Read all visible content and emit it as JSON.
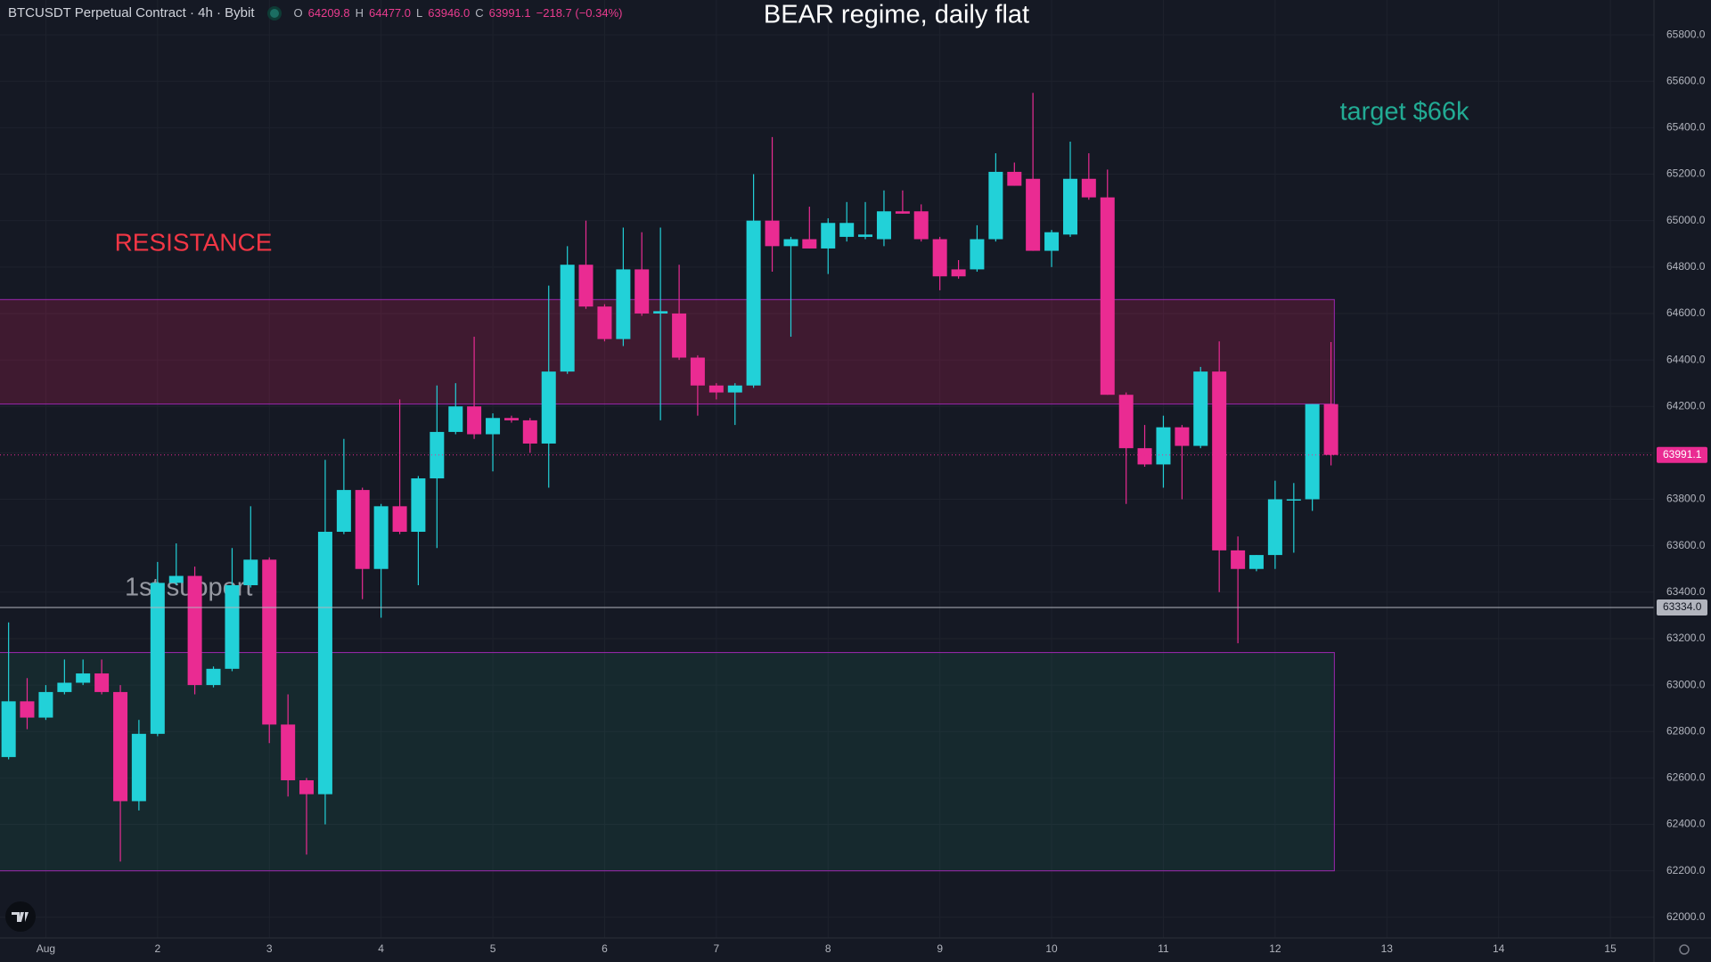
{
  "header": {
    "symbol": "BTCUSDT Perpetual Contract · 4h · Bybit",
    "ohlc": [
      {
        "key": "O",
        "value": "64209.8"
      },
      {
        "key": "H",
        "value": "64477.0"
      },
      {
        "key": "L",
        "value": "63946.0"
      },
      {
        "key": "C",
        "value": "63991.1"
      }
    ],
    "change": "−218.7 (−0.34%)"
  },
  "chart_data": {
    "type": "candlestick",
    "title": "BEAR regime, daily flat",
    "annotations": [
      "RESISTANCE",
      "target $66k",
      "1st support"
    ],
    "up_color": "#22d1d8",
    "down_color": "#ea2b92",
    "grid": true,
    "xlim": [
      0.59,
      15.39
    ],
    "ylim": [
      61911,
      65950
    ],
    "xticks": [
      {
        "value": 1,
        "label": "Aug"
      },
      2,
      3,
      4,
      5,
      6,
      7,
      8,
      9,
      10,
      11,
      12,
      13,
      14,
      15
    ],
    "yticks": [
      {
        "value": 62000,
        "label": "62000.0"
      },
      {
        "value": 62200,
        "label": "62200.0"
      },
      {
        "value": 62400,
        "label": "62400.0"
      },
      {
        "value": 62600,
        "label": "62600.0"
      },
      {
        "value": 62800,
        "label": "62800.0"
      },
      {
        "value": 63000,
        "label": "63000.0"
      },
      {
        "value": 63200,
        "label": "63200.0"
      },
      {
        "value": 63400,
        "label": "63400.0"
      },
      {
        "value": 63600,
        "label": "63600.0"
      },
      {
        "value": 63800,
        "label": "63800.0"
      },
      {
        "value": 64000,
        "label": "64000.0"
      },
      {
        "value": 64200,
        "label": "64200.0"
      },
      {
        "value": 64400,
        "label": "64400.0"
      },
      {
        "value": 64600,
        "label": "64600.0"
      },
      {
        "value": 64800,
        "label": "64800.0"
      },
      {
        "value": 65000,
        "label": "65000.0"
      },
      {
        "value": 65200,
        "label": "65200.0"
      },
      {
        "value": 65400,
        "label": "65400.0"
      },
      {
        "value": 65600,
        "label": "65600.0"
      },
      {
        "value": 65800,
        "label": "65800.0"
      }
    ],
    "zones": [
      {
        "top": 64660,
        "bottom": 64210,
        "x_end": 12.53,
        "color": "#e91e63"
      },
      {
        "top": 63140,
        "bottom": 62200,
        "x_end": 12.53,
        "color": "#1e6b58"
      }
    ],
    "hlines": [
      {
        "value": 63334,
        "value_label": "63334.0",
        "color": "#b2b5be",
        "style": "solid"
      },
      {
        "value": 63991.1,
        "value_label": "63991.1",
        "color": "#ea2b92",
        "style": "dotted"
      }
    ],
    "x": [
      0.667,
      0.833,
      1,
      1.167,
      1.333,
      1.5,
      1.667,
      1.833,
      2,
      2.167,
      2.333,
      2.5,
      2.667,
      2.833,
      3,
      3.167,
      3.333,
      3.5,
      3.667,
      3.833,
      4,
      4.167,
      4.333,
      4.5,
      4.667,
      4.833,
      5,
      5.167,
      5.333,
      5.5,
      5.667,
      5.833,
      6,
      6.167,
      6.333,
      6.5,
      6.667,
      6.833,
      7,
      7.167,
      7.333,
      7.5,
      7.667,
      7.833,
      8,
      8.167,
      8.333,
      8.5,
      8.667,
      8.833,
      9,
      9.167,
      9.333,
      9.5,
      9.667,
      9.833,
      10,
      10.167,
      10.333,
      10.5,
      10.667,
      10.833,
      11,
      11.167,
      11.333,
      11.5,
      11.667,
      11.833,
      12,
      12.167,
      12.333,
      12.5
    ],
    "open": [
      62690,
      62930,
      62860,
      62970,
      63010,
      63050,
      62970,
      62500,
      62790,
      63440,
      63470,
      63000,
      63070,
      63430,
      63540,
      62830,
      62590,
      62530,
      63660,
      63840,
      63500,
      63770,
      63660,
      63890,
      64090,
      64200,
      64080,
      64150,
      64140,
      64040,
      64350,
      64810,
      64630,
      64490,
      64790,
      64600,
      64600,
      64410,
      64290,
      64260,
      64290,
      65000,
      64890,
      64920,
      64880,
      64930,
      64930,
      64920,
      65040,
      65040,
      64920,
      64790,
      64790,
      64920,
      65210,
      65180,
      64870,
      64940,
      65180,
      65100,
      64250,
      64020,
      63950,
      64110,
      64030,
      64350,
      63580,
      63500,
      63560,
      63800,
      63800,
      64209.8
    ],
    "high": [
      63270,
      63030,
      63000,
      63110,
      63110,
      63110,
      63000,
      62850,
      63530,
      63610,
      63510,
      63080,
      63590,
      63770,
      63550,
      62960,
      62600,
      63970,
      64060,
      63850,
      63780,
      64230,
      63900,
      64290,
      64300,
      64500,
      64170,
      64160,
      64150,
      64720,
      64890,
      65000,
      64640,
      64970,
      64950,
      64970,
      64810,
      64420,
      64300,
      64300,
      65200,
      65360,
      64930,
      65060,
      65010,
      65080,
      65080,
      65130,
      65130,
      65070,
      64930,
      64830,
      64980,
      65290,
      65250,
      65550,
      64960,
      65340,
      65290,
      65220,
      64260,
      64120,
      64160,
      64120,
      64370,
      64480,
      63640,
      63560,
      63880,
      63870,
      64210,
      64477.0
    ],
    "low": [
      62680,
      62810,
      62850,
      62960,
      63000,
      62960,
      62240,
      62460,
      62780,
      63430,
      62960,
      62990,
      63060,
      63420,
      62750,
      62520,
      62270,
      62400,
      63650,
      63370,
      63290,
      63650,
      63430,
      63590,
      64080,
      64060,
      63920,
      64130,
      64000,
      63850,
      64340,
      64620,
      64480,
      64460,
      64590,
      64140,
      64400,
      64160,
      64230,
      64120,
      64280,
      64780,
      64500,
      64880,
      64770,
      64910,
      64920,
      64890,
      65030,
      64910,
      64700,
      64750,
      64780,
      64910,
      65150,
      64870,
      64800,
      64930,
      65090,
      64250,
      63780,
      63940,
      63850,
      63800,
      64020,
      63400,
      63180,
      63490,
      63500,
      63570,
      63750,
      63946.0
    ],
    "close": [
      62930,
      62860,
      62970,
      63010,
      63050,
      62970,
      62500,
      62790,
      63440,
      63470,
      63000,
      63070,
      63430,
      63540,
      62830,
      62590,
      62530,
      63660,
      63840,
      63500,
      63770,
      63660,
      63890,
      64090,
      64200,
      64080,
      64150,
      64140,
      64040,
      64350,
      64810,
      64630,
      64490,
      64790,
      64600,
      64610,
      64410,
      64290,
      64260,
      64290,
      65000,
      64890,
      64920,
      64880,
      64990,
      64990,
      64940,
      65040,
      65030,
      64920,
      64760,
      64760,
      64920,
      65210,
      65150,
      64870,
      64950,
      65180,
      65100,
      64250,
      64020,
      63950,
      64110,
      64030,
      64350,
      63580,
      63500,
      63560,
      63800,
      63800,
      64210,
      63991.1
    ]
  }
}
